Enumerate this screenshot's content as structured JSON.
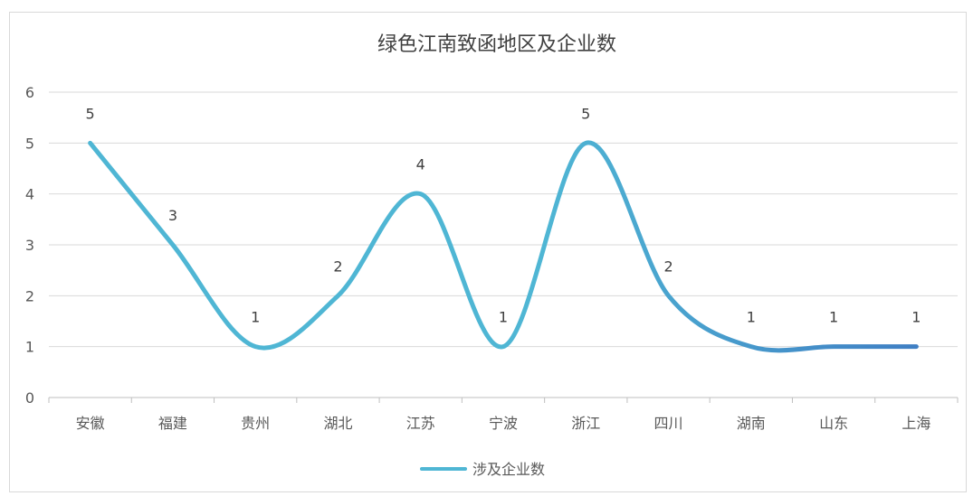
{
  "chart_data": {
    "type": "line",
    "title": "绿色江南致函地区及企业数",
    "categories": [
      "安徽",
      "福建",
      "贵州",
      "湖北",
      "江苏",
      "宁波",
      "浙江",
      "四川",
      "湖南",
      "山东",
      "上海"
    ],
    "series": [
      {
        "name": "涉及企业数",
        "values": [
          5,
          3,
          1,
          2,
          4,
          1,
          5,
          2,
          1,
          1,
          1
        ]
      }
    ],
    "ylim": [
      0,
      6
    ],
    "yticks": [
      "0",
      "1",
      "2",
      "3",
      "4",
      "5",
      "6"
    ],
    "smooth": true,
    "data_labels": true,
    "grid": true,
    "legend_position": "bottom",
    "colors": {
      "line_start": "#4fb6d4",
      "line_end": "#3f7fc4",
      "grid": "#d9d9d9",
      "axis": "#bfbfbf"
    }
  }
}
